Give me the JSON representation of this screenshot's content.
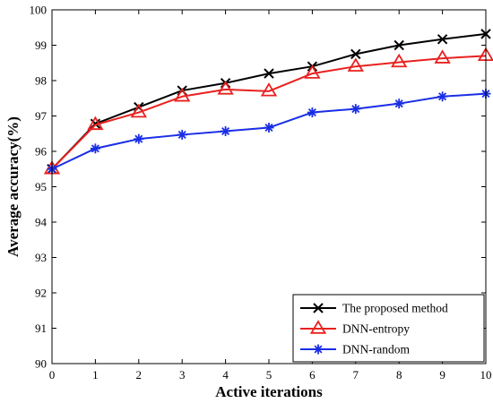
{
  "chart_data": {
    "type": "line",
    "xlabel": "Active iterations",
    "ylabel": "Average accuracy(%)",
    "xlim": [
      0,
      10
    ],
    "ylim": [
      90,
      100
    ],
    "x": [
      0,
      1,
      2,
      3,
      4,
      5,
      6,
      7,
      8,
      9,
      10
    ],
    "xticks": [
      "0",
      "1",
      "2",
      "3",
      "4",
      "5",
      "6",
      "7",
      "8",
      "9",
      "10"
    ],
    "yticks": [
      "90",
      "91",
      "92",
      "93",
      "94",
      "95",
      "96",
      "97",
      "98",
      "99",
      "100"
    ],
    "grid": false,
    "legend_position": "bottom-right",
    "series": [
      {
        "name": "The proposed method",
        "color": "#000000",
        "marker": "x",
        "values": [
          95.5,
          96.78,
          97.25,
          97.72,
          97.93,
          98.2,
          98.4,
          98.75,
          99.0,
          99.17,
          99.32
        ]
      },
      {
        "name": "DNN-entropy",
        "color": "#e8211f",
        "marker": "triangle",
        "values": [
          95.5,
          96.75,
          97.1,
          97.55,
          97.75,
          97.7,
          98.2,
          98.4,
          98.52,
          98.63,
          98.7
        ]
      },
      {
        "name": "DNN-random",
        "color": "#1a2ee6",
        "marker": "asterisk",
        "values": [
          95.5,
          96.08,
          96.35,
          96.47,
          96.57,
          96.67,
          97.1,
          97.2,
          97.35,
          97.55,
          97.63
        ]
      }
    ]
  }
}
